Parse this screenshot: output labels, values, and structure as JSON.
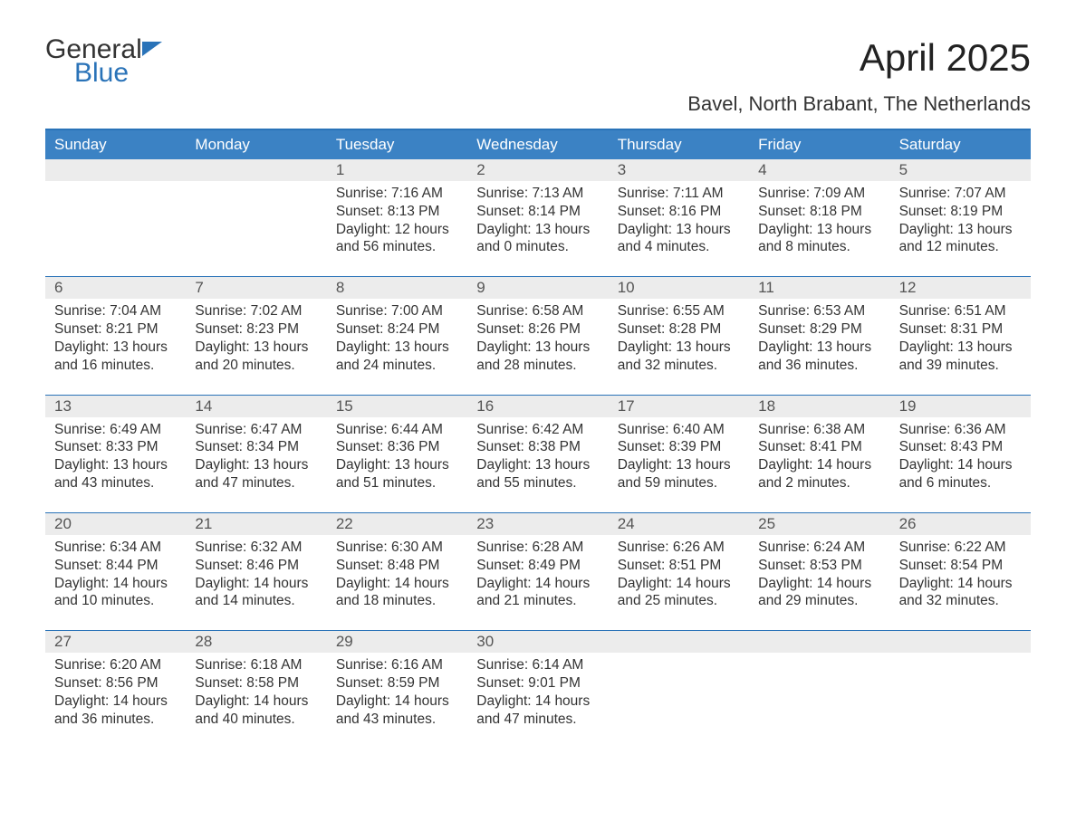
{
  "logo": {
    "word1": "General",
    "word2": "Blue"
  },
  "title": "April 2025",
  "subtitle": "Bavel, North Brabant, The Netherlands",
  "colors": {
    "brand_blue": "#2a73b8",
    "header_blue": "#3b82c4",
    "grey_band": "#ececec",
    "text": "#333333",
    "background": "#ffffff"
  },
  "typography": {
    "title_fontsize": 42,
    "subtitle_fontsize": 22,
    "dow_fontsize": 17,
    "cell_fontsize": 15.5,
    "logo_fontsize": 30
  },
  "dow": [
    "Sunday",
    "Monday",
    "Tuesday",
    "Wednesday",
    "Thursday",
    "Friday",
    "Saturday"
  ],
  "labels": {
    "sunrise": "Sunrise: ",
    "sunset": "Sunset: ",
    "daylight": "Daylight: ",
    "and": "and ",
    "minutes_suffix": " minutes.",
    "hours_suffix": " hours"
  },
  "weeks": [
    [
      null,
      null,
      {
        "n": 1,
        "sunrise": "7:16 AM",
        "sunset": "8:13 PM",
        "dl_h": 12,
        "dl_m": 56
      },
      {
        "n": 2,
        "sunrise": "7:13 AM",
        "sunset": "8:14 PM",
        "dl_h": 13,
        "dl_m": 0
      },
      {
        "n": 3,
        "sunrise": "7:11 AM",
        "sunset": "8:16 PM",
        "dl_h": 13,
        "dl_m": 4
      },
      {
        "n": 4,
        "sunrise": "7:09 AM",
        "sunset": "8:18 PM",
        "dl_h": 13,
        "dl_m": 8
      },
      {
        "n": 5,
        "sunrise": "7:07 AM",
        "sunset": "8:19 PM",
        "dl_h": 13,
        "dl_m": 12
      }
    ],
    [
      {
        "n": 6,
        "sunrise": "7:04 AM",
        "sunset": "8:21 PM",
        "dl_h": 13,
        "dl_m": 16
      },
      {
        "n": 7,
        "sunrise": "7:02 AM",
        "sunset": "8:23 PM",
        "dl_h": 13,
        "dl_m": 20
      },
      {
        "n": 8,
        "sunrise": "7:00 AM",
        "sunset": "8:24 PM",
        "dl_h": 13,
        "dl_m": 24
      },
      {
        "n": 9,
        "sunrise": "6:58 AM",
        "sunset": "8:26 PM",
        "dl_h": 13,
        "dl_m": 28
      },
      {
        "n": 10,
        "sunrise": "6:55 AM",
        "sunset": "8:28 PM",
        "dl_h": 13,
        "dl_m": 32
      },
      {
        "n": 11,
        "sunrise": "6:53 AM",
        "sunset": "8:29 PM",
        "dl_h": 13,
        "dl_m": 36
      },
      {
        "n": 12,
        "sunrise": "6:51 AM",
        "sunset": "8:31 PM",
        "dl_h": 13,
        "dl_m": 39
      }
    ],
    [
      {
        "n": 13,
        "sunrise": "6:49 AM",
        "sunset": "8:33 PM",
        "dl_h": 13,
        "dl_m": 43
      },
      {
        "n": 14,
        "sunrise": "6:47 AM",
        "sunset": "8:34 PM",
        "dl_h": 13,
        "dl_m": 47
      },
      {
        "n": 15,
        "sunrise": "6:44 AM",
        "sunset": "8:36 PM",
        "dl_h": 13,
        "dl_m": 51
      },
      {
        "n": 16,
        "sunrise": "6:42 AM",
        "sunset": "8:38 PM",
        "dl_h": 13,
        "dl_m": 55
      },
      {
        "n": 17,
        "sunrise": "6:40 AM",
        "sunset": "8:39 PM",
        "dl_h": 13,
        "dl_m": 59
      },
      {
        "n": 18,
        "sunrise": "6:38 AM",
        "sunset": "8:41 PM",
        "dl_h": 14,
        "dl_m": 2
      },
      {
        "n": 19,
        "sunrise": "6:36 AM",
        "sunset": "8:43 PM",
        "dl_h": 14,
        "dl_m": 6
      }
    ],
    [
      {
        "n": 20,
        "sunrise": "6:34 AM",
        "sunset": "8:44 PM",
        "dl_h": 14,
        "dl_m": 10
      },
      {
        "n": 21,
        "sunrise": "6:32 AM",
        "sunset": "8:46 PM",
        "dl_h": 14,
        "dl_m": 14
      },
      {
        "n": 22,
        "sunrise": "6:30 AM",
        "sunset": "8:48 PM",
        "dl_h": 14,
        "dl_m": 18
      },
      {
        "n": 23,
        "sunrise": "6:28 AM",
        "sunset": "8:49 PM",
        "dl_h": 14,
        "dl_m": 21
      },
      {
        "n": 24,
        "sunrise": "6:26 AM",
        "sunset": "8:51 PM",
        "dl_h": 14,
        "dl_m": 25
      },
      {
        "n": 25,
        "sunrise": "6:24 AM",
        "sunset": "8:53 PM",
        "dl_h": 14,
        "dl_m": 29
      },
      {
        "n": 26,
        "sunrise": "6:22 AM",
        "sunset": "8:54 PM",
        "dl_h": 14,
        "dl_m": 32
      }
    ],
    [
      {
        "n": 27,
        "sunrise": "6:20 AM",
        "sunset": "8:56 PM",
        "dl_h": 14,
        "dl_m": 36
      },
      {
        "n": 28,
        "sunrise": "6:18 AM",
        "sunset": "8:58 PM",
        "dl_h": 14,
        "dl_m": 40
      },
      {
        "n": 29,
        "sunrise": "6:16 AM",
        "sunset": "8:59 PM",
        "dl_h": 14,
        "dl_m": 43
      },
      {
        "n": 30,
        "sunrise": "6:14 AM",
        "sunset": "9:01 PM",
        "dl_h": 14,
        "dl_m": 47
      },
      null,
      null,
      null
    ]
  ]
}
